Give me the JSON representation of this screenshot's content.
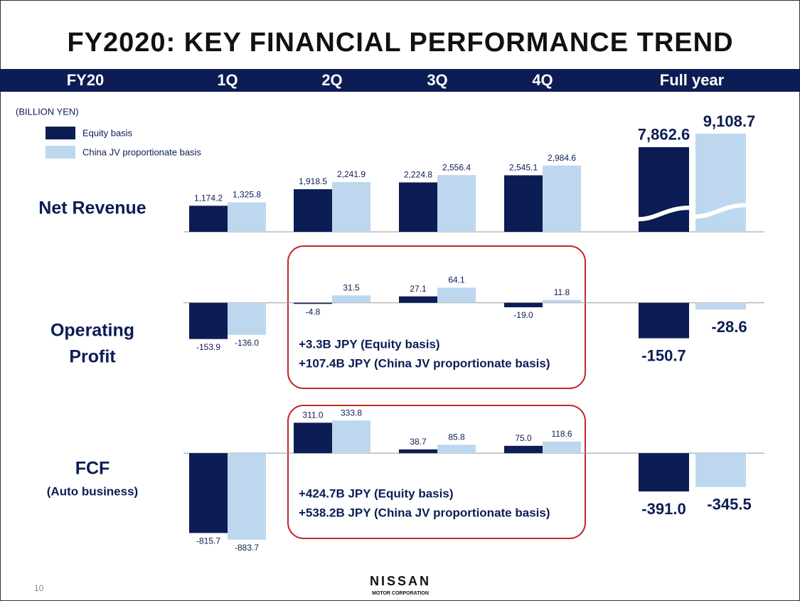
{
  "slide_title": "FY2020: KEY FINANCIAL PERFORMANCE TREND",
  "page_number": "10",
  "logo": {
    "name": "NISSAN",
    "subtitle": "MOTOR CORPORATION"
  },
  "chart_data": {
    "type": "bar",
    "corner_label": "FY20",
    "unit": "(BILLION YEN)",
    "categories": [
      "1Q",
      "2Q",
      "3Q",
      "4Q",
      "Full year"
    ],
    "series": [
      {
        "name": "Equity basis",
        "color": "#0c1c54"
      },
      {
        "name": "China JV proportionate basis",
        "color": "#bdd7ee"
      }
    ],
    "panels": [
      {
        "title": [
          "Net Revenue"
        ],
        "values": [
          [
            1174.2,
            1918.5,
            2224.8,
            2545.1,
            7862.6
          ],
          [
            1325.8,
            2241.9,
            2556.4,
            2984.6,
            9108.7
          ]
        ],
        "value_labels": [
          [
            "1,174.2",
            "1,918.5",
            "2,224.8",
            "2,545.1",
            "7,862.6"
          ],
          [
            "1,325.8",
            "2,241.9",
            "2,556.4",
            "2,984.6",
            "9,108.7"
          ]
        ],
        "ylim": [
          0,
          4800
        ],
        "axis_break": true,
        "break_ylim": [
          0,
          9900
        ],
        "annotations": []
      },
      {
        "title": [
          "Operating",
          "Profit"
        ],
        "values": [
          [
            -153.9,
            -4.8,
            27.1,
            -19.0,
            -150.7
          ],
          [
            -136.0,
            31.5,
            64.1,
            11.8,
            -28.6
          ]
        ],
        "value_labels": [
          [
            "-153.9",
            "-4.8",
            "27.1",
            "-19.0",
            "-150.7"
          ],
          [
            "-136.0",
            "31.5",
            "64.1",
            "11.8",
            "-28.6"
          ]
        ],
        "ylim": [
          -170,
          150
        ],
        "axis_break": false,
        "annotations": [
          "+3.3B JPY (Equity basis)",
          "+107.4B JPY (China JV proportionate basis)"
        ]
      },
      {
        "title": [
          "FCF",
          "(Auto business)"
        ],
        "values": [
          [
            -815.7,
            311.0,
            38.7,
            75.0,
            -391.0
          ],
          [
            -883.7,
            333.8,
            85.8,
            118.6,
            -345.5
          ]
        ],
        "value_labels": [
          [
            "-815.7",
            "311.0",
            "38.7",
            "75.0",
            "-391.0"
          ],
          [
            "-883.7",
            "333.8",
            "85.8",
            "118.6",
            "-345.5"
          ]
        ],
        "ylim": [
          -900,
          350
        ],
        "axis_break": false,
        "annotations": [
          "+424.7B JPY (Equity basis)",
          "+538.2B JPY (China JV proportionate basis)"
        ]
      }
    ]
  }
}
